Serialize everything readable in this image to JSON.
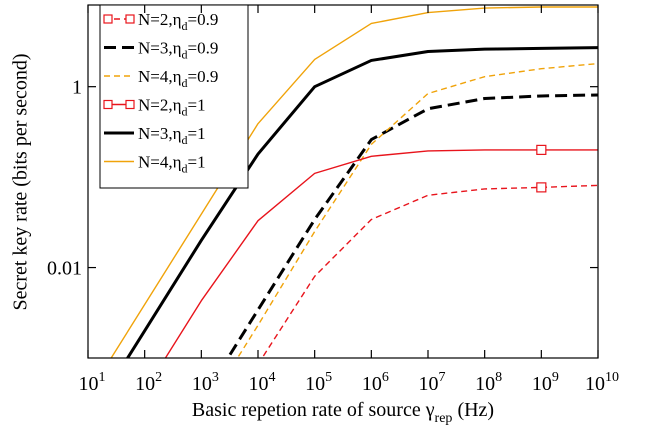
{
  "chart_data": {
    "type": "line",
    "x_label": {
      "text": "Basic repetion rate of source γ",
      "subscript": "rep",
      "suffix": " (Hz)"
    },
    "y_label": "Secret key rate (bits per second)",
    "x": [
      10,
      100,
      1000,
      10000,
      100000,
      1000000,
      10000000,
      100000000,
      1000000000,
      10000000000
    ],
    "xlim": [
      10,
      10000000000
    ],
    "xscale": "log",
    "xticks": [
      {
        "value": 10,
        "label": "10",
        "exponent": "1"
      },
      {
        "value": 100,
        "label": "10",
        "exponent": "2"
      },
      {
        "value": 1000,
        "label": "10",
        "exponent": "3"
      },
      {
        "value": 10000,
        "label": "10",
        "exponent": "4"
      },
      {
        "value": 100000,
        "label": "10",
        "exponent": "5"
      },
      {
        "value": 1000000,
        "label": "10",
        "exponent": "6"
      },
      {
        "value": 10000000,
        "label": "10",
        "exponent": "7"
      },
      {
        "value": 100000000,
        "label": "10",
        "exponent": "8"
      },
      {
        "value": 1000000000,
        "label": "10",
        "exponent": "9"
      },
      {
        "value": 10000000000,
        "label": "10",
        "exponent": "10"
      }
    ],
    "ylim": [
      0.001,
      8
    ],
    "yscale": "log",
    "yticks": [
      0.01,
      1
    ],
    "legend": "upper left",
    "series": [
      {
        "name": "N=2,η",
        "name_sub": "d",
        "name_suffix": "=0.9",
        "color": "#e8141c",
        "dash": "dashed",
        "width": 1.4,
        "marker": "square",
        "marker_at": 1000000000,
        "values": [
          null,
          null,
          null,
          0.00085,
          0.008,
          0.034,
          0.063,
          0.074,
          0.077,
          0.081
        ]
      },
      {
        "name": "N=3,η",
        "name_sub": "d",
        "name_suffix": "=0.9",
        "color": "#000000",
        "dash": "dashed",
        "width": 3,
        "values": [
          null,
          null,
          0.00034,
          0.0034,
          0.034,
          0.26,
          0.57,
          0.74,
          0.79,
          0.81
        ]
      },
      {
        "name": "N=4,η",
        "name_sub": "d",
        "name_suffix": "=0.9",
        "color": "#f0a30a",
        "dash": "dashed",
        "width": 1.4,
        "values": [
          null,
          null,
          0.00023,
          0.0023,
          0.025,
          0.23,
          0.84,
          1.29,
          1.58,
          1.8
        ]
      },
      {
        "name": "N=2,η",
        "name_sub": "d",
        "name_suffix": "=1",
        "color": "#e8141c",
        "dash": "solid",
        "width": 1.4,
        "marker": "square",
        "marker_at": 1000000000,
        "values": [
          null,
          0.00043,
          0.0043,
          0.033,
          0.11,
          0.17,
          0.195,
          0.2,
          0.2,
          0.2
        ]
      },
      {
        "name": "N=3,η",
        "name_sub": "d",
        "name_suffix": "=1",
        "color": "#000000",
        "dash": "solid",
        "width": 3,
        "values": [
          0.0002,
          0.002,
          0.02,
          0.18,
          1.0,
          1.95,
          2.45,
          2.6,
          2.65,
          2.7
        ]
      },
      {
        "name": "N=4,η",
        "name_sub": "d",
        "name_suffix": "=1",
        "color": "#f0a30a",
        "dash": "solid",
        "width": 1.4,
        "values": [
          0.00039,
          0.0039,
          0.039,
          0.39,
          2.0,
          5.0,
          6.6,
          7.4,
          7.6,
          7.6
        ]
      }
    ]
  }
}
